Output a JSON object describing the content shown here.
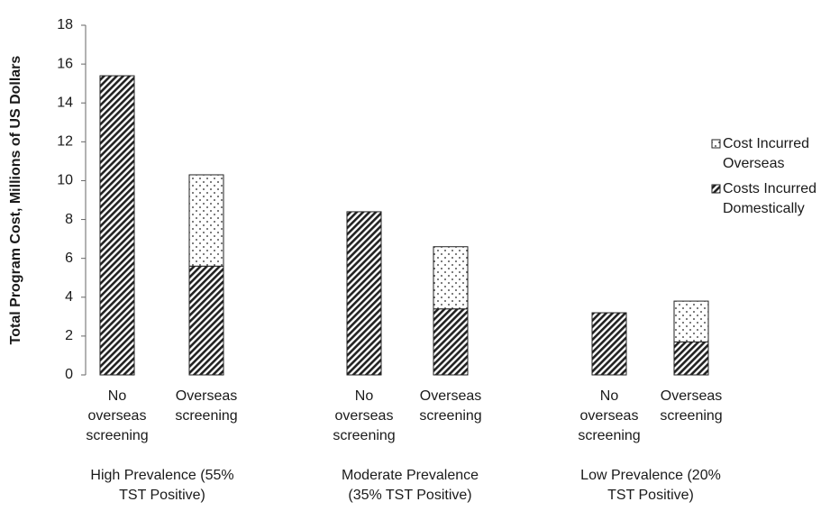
{
  "chart_data": {
    "type": "bar",
    "stacked": true,
    "ylabel": "Total Program Cost, Millions of US Dollars",
    "categories": [
      "No overseas screening",
      "Overseas screening",
      "No overseas screening",
      "Overseas screening",
      "No overseas screening",
      "Overseas screening"
    ],
    "groups": [
      {
        "label": [
          "High Prevalence (55%",
          "TST Positive)"
        ]
      },
      {
        "label": [
          "Moderate Prevalence",
          "(35% TST Positive)"
        ]
      },
      {
        "label": [
          "Low Prevalence (20%",
          "TST Positive)"
        ]
      }
    ],
    "series": [
      {
        "name": "Costs Incurred Domestically",
        "color": "#222222",
        "pattern": "hatch",
        "values": [
          15.4,
          5.6,
          8.4,
          3.4,
          3.2,
          1.7
        ]
      },
      {
        "name": "Cost Incurred Overseas",
        "color": "#222222",
        "pattern": "dots",
        "values": [
          0,
          4.7,
          0,
          3.2,
          0,
          2.1
        ]
      }
    ],
    "ylim": [
      0,
      18
    ],
    "yticks": [
      0,
      2,
      4,
      6,
      8,
      10,
      12,
      14,
      16,
      18
    ],
    "grid": false
  }
}
